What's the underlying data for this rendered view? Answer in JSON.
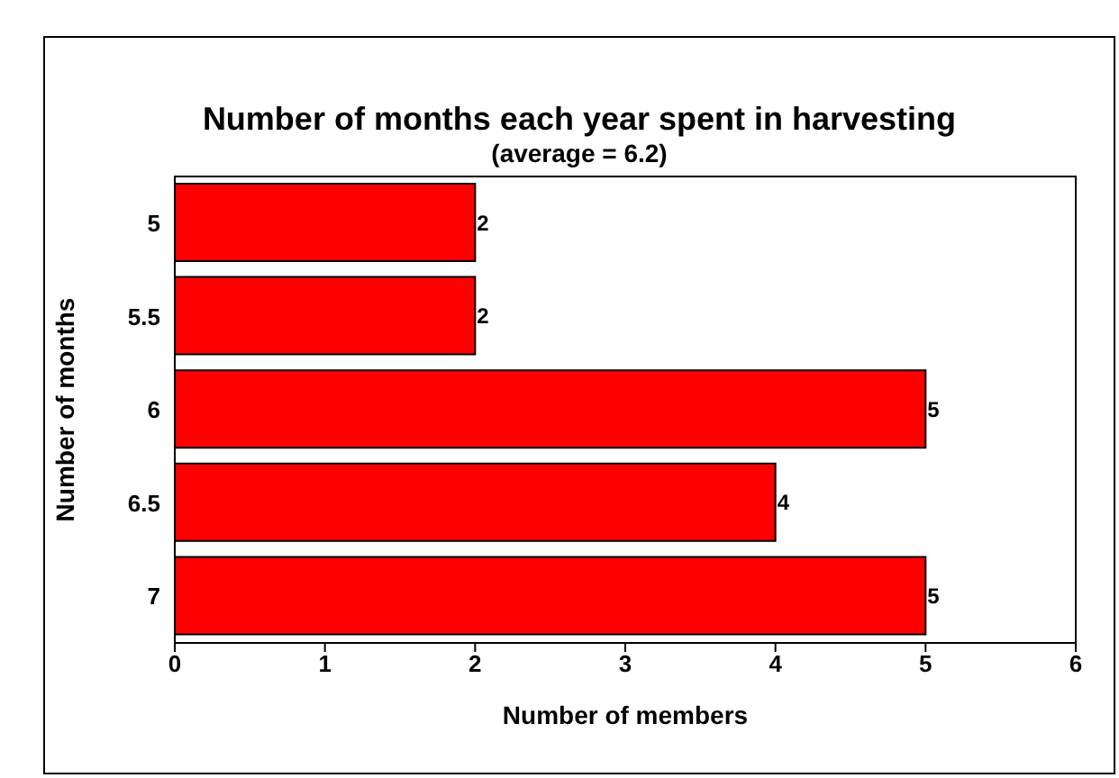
{
  "chart_data": {
    "type": "bar",
    "orientation": "horizontal",
    "title": "Number of months each year spent in harvesting",
    "subtitle": "(average = 6.2)",
    "xlabel": "Number of members",
    "ylabel": "Number of months",
    "categories": [
      "5",
      "5.5",
      "6",
      "6.5",
      "7"
    ],
    "values": [
      2,
      2,
      5,
      4,
      5
    ],
    "color": "#ff0000",
    "xlim": [
      0,
      6
    ],
    "xticks": [
      0,
      1,
      2,
      3,
      4,
      5,
      6
    ],
    "grid": false,
    "data_labels": true
  }
}
